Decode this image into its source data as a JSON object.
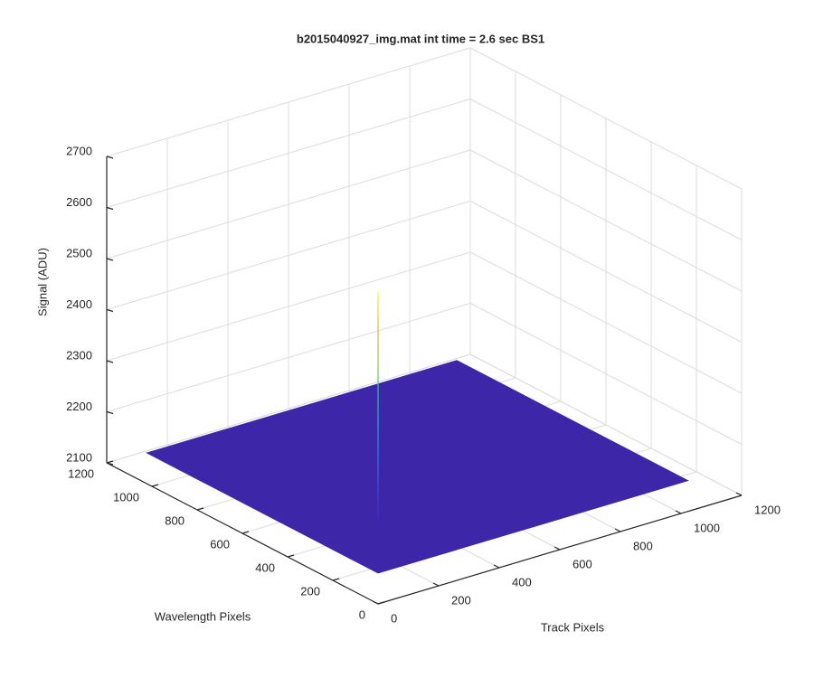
{
  "chart_data": {
    "type": "surface3d",
    "title": "b2015040927_img.mat int time = 2.6 sec   BS1",
    "xlabel": "Track Pixels",
    "ylabel": "Wavelength Pixels",
    "zlabel": "Signal (ADU)",
    "xlim": [
      0,
      1200
    ],
    "xticks": [
      0,
      200,
      400,
      600,
      800,
      1000,
      1200
    ],
    "ylim": [
      0,
      1200
    ],
    "yticks": [
      0,
      200,
      400,
      600,
      800,
      1000,
      1200
    ],
    "zlim": [
      2100,
      2700
    ],
    "zticks": [
      2100,
      2200,
      2300,
      2400,
      2500,
      2600,
      2700
    ],
    "grid": true,
    "colormap": [
      "#3e26a8",
      "#4443e8",
      "#2b7cf4",
      "#17aed6",
      "#2ec4a1",
      "#9cc93b",
      "#e4bb33",
      "#f9fb0e"
    ],
    "x": [
      0,
      256,
      512,
      768,
      1024
    ],
    "y": [
      0,
      256,
      512,
      768,
      1024
    ],
    "z": [
      [
        2160,
        2160,
        2160,
        2160,
        2160
      ],
      [
        2160,
        2160,
        2160,
        2160,
        2160
      ],
      [
        2160,
        2160,
        2160,
        2160,
        2160
      ],
      [
        2160,
        2160,
        2160,
        2160,
        2160
      ],
      [
        2160,
        2160,
        2160,
        2160,
        2160
      ]
    ],
    "peak": {
      "x": 197,
      "y": 264,
      "z": 2615
    }
  }
}
